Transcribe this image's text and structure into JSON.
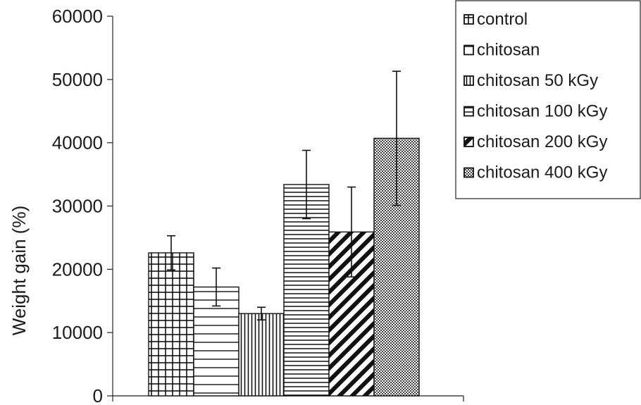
{
  "chart_data": {
    "type": "bar",
    "ylabel": "Weight gain (%)",
    "ylim": [
      0,
      60000
    ],
    "yticks": [
      0,
      10000,
      20000,
      30000,
      40000,
      50000,
      60000
    ],
    "grid": false,
    "legend_placement": "top-right",
    "series": [
      {
        "name": "control",
        "value": 22600,
        "error": 2700,
        "pattern": "grid"
      },
      {
        "name": "chitosan",
        "value": 17200,
        "error": 3000,
        "pattern": "horizontal-wide"
      },
      {
        "name": "chitosan 50 kGy",
        "value": 13000,
        "error": 1000,
        "pattern": "vertical"
      },
      {
        "name": "chitosan 100 kGy",
        "value": 33400,
        "error": 5400,
        "pattern": "horizontal-dense"
      },
      {
        "name": "chitosan 200 kGy",
        "value": 25900,
        "error": 7100,
        "pattern": "diagonal"
      },
      {
        "name": "chitosan 400 kGy",
        "value": 40700,
        "error": 10600,
        "pattern": "checker"
      }
    ]
  }
}
